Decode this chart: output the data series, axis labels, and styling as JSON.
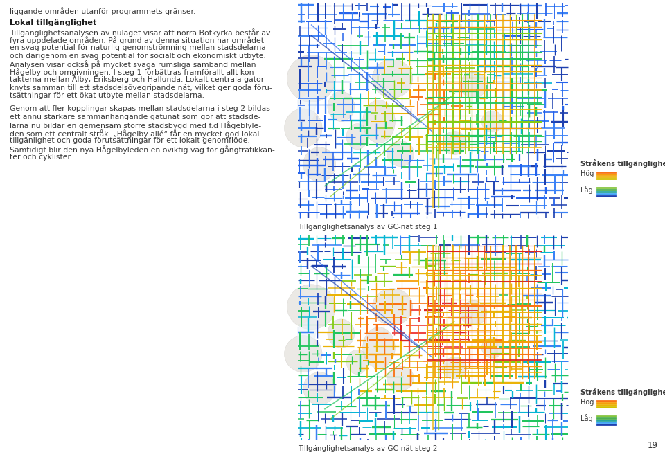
{
  "background_color": "#ffffff",
  "page_number": "19",
  "top_text": "liggande områden utanför programmets gränser.",
  "section_title": "Lokal tillgänglighet",
  "body_text_1_lines": [
    "Tillgänglighetsanalysen av nuläget visar att norra Botkyrka består av",
    "fyra uppdelade områden. På grund av denna situation har området",
    "en svag potential för naturlig genomströmning mellan stadsdelarna",
    "och därigenom en svag potential för socialt och ekonomiskt utbyte.",
    "Analysen visar också på mycket svaga rumsliga samband mellan",
    "Hågelby och omgivningen. I steg 1 förbättras framförallt allt kon-",
    "takterna mellan Alby, Eriksberg och Hallunda. Lokalt centrala gator",
    "knyts samman till ett stadsdelsövegripande nät, vilket ger goda föru-",
    "tsättningar för ett ökat utbyte mellan stadsdelarna."
  ],
  "body_text_2_lines": [
    "Genom att fler kopplingar skapas mellan stadsdelarna i steg 2 bildas",
    "ett ännu starkare sammanhängande gatunät som gör att stadsde-",
    "larna nu bildar en gemensam större stadsbygd med f.d Hågeblyle-",
    "den som ett centralt stråk. „Hågelby allé“ får en mycket god lokal",
    "tillgänlighet och goda förutsättningar för ett lokalt genomflöde.",
    "Samtidigt blir den nya Hågelbyleden en oviktig väg för gångtrafikkan-",
    "ter och cyklister."
  ],
  "map1_caption": "Tillgänglighetsanalys av GC-nät steg 1",
  "map2_caption": "Tillgänglighetsanalys av GC-nät steg 2",
  "legend_title": "Stråkens tillgänglighet",
  "legend_high_label": "Hög",
  "legend_low_label": "Låg",
  "high_colors": [
    "#f97316",
    "#f59e0b",
    "#eab308",
    "#d4c000"
  ],
  "low_colors": [
    "#86c540",
    "#4caf50",
    "#26a69a",
    "#42a5f5",
    "#1e40af"
  ],
  "text_color": "#3a3a3a",
  "bold_color": "#1a1a1a",
  "map_bg": "#f5f3ef",
  "terrain_color": "#d0ccc4",
  "water_color": "#ffffff",
  "network_colors": [
    "#1e3a8a",
    "#1e40af",
    "#2563eb",
    "#3b82f6",
    "#06b6d4",
    "#22c55e",
    "#84cc16",
    "#bef264",
    "#eab308",
    "#f59e0b",
    "#f97316",
    "#ef4444",
    "#dc2626"
  ]
}
